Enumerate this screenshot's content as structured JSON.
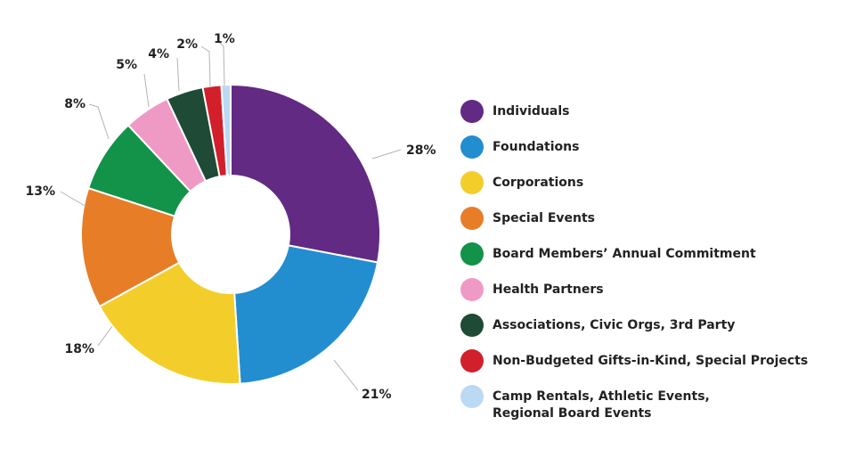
{
  "chart_data": {
    "type": "pie",
    "donut": true,
    "slices": [
      {
        "label": "Individuals",
        "value": 28,
        "value_label": "28%",
        "color": "#622a83"
      },
      {
        "label": "Foundations",
        "value": 21,
        "value_label": "21%",
        "color": "#238ecf"
      },
      {
        "label": "Corporations",
        "value": 18,
        "value_label": "18%",
        "color": "#f3ce2b"
      },
      {
        "label": "Special Events",
        "value": 13,
        "value_label": "13%",
        "color": "#e77d27"
      },
      {
        "label": "Board Members’ Annual Commitment",
        "value": 8,
        "value_label": "8%",
        "color": "#13924a"
      },
      {
        "label": "Health Partners",
        "value": 5,
        "value_label": "5%",
        "color": "#ef9ac5"
      },
      {
        "label": "Associations, Civic Orgs, 3rd Party",
        "value": 4,
        "value_label": "4%",
        "color": "#1f4a35"
      },
      {
        "label": "Non-Budgeted Gifts-in-Kind, Special Projects",
        "value": 2,
        "value_label": "2%",
        "color": "#d21f2c"
      },
      {
        "label": "Camp Rentals, Athletic Events,\nRegional Board Events",
        "value": 1,
        "value_label": "1%",
        "color": "#bcd9f3"
      }
    ],
    "legend_position": "right"
  }
}
